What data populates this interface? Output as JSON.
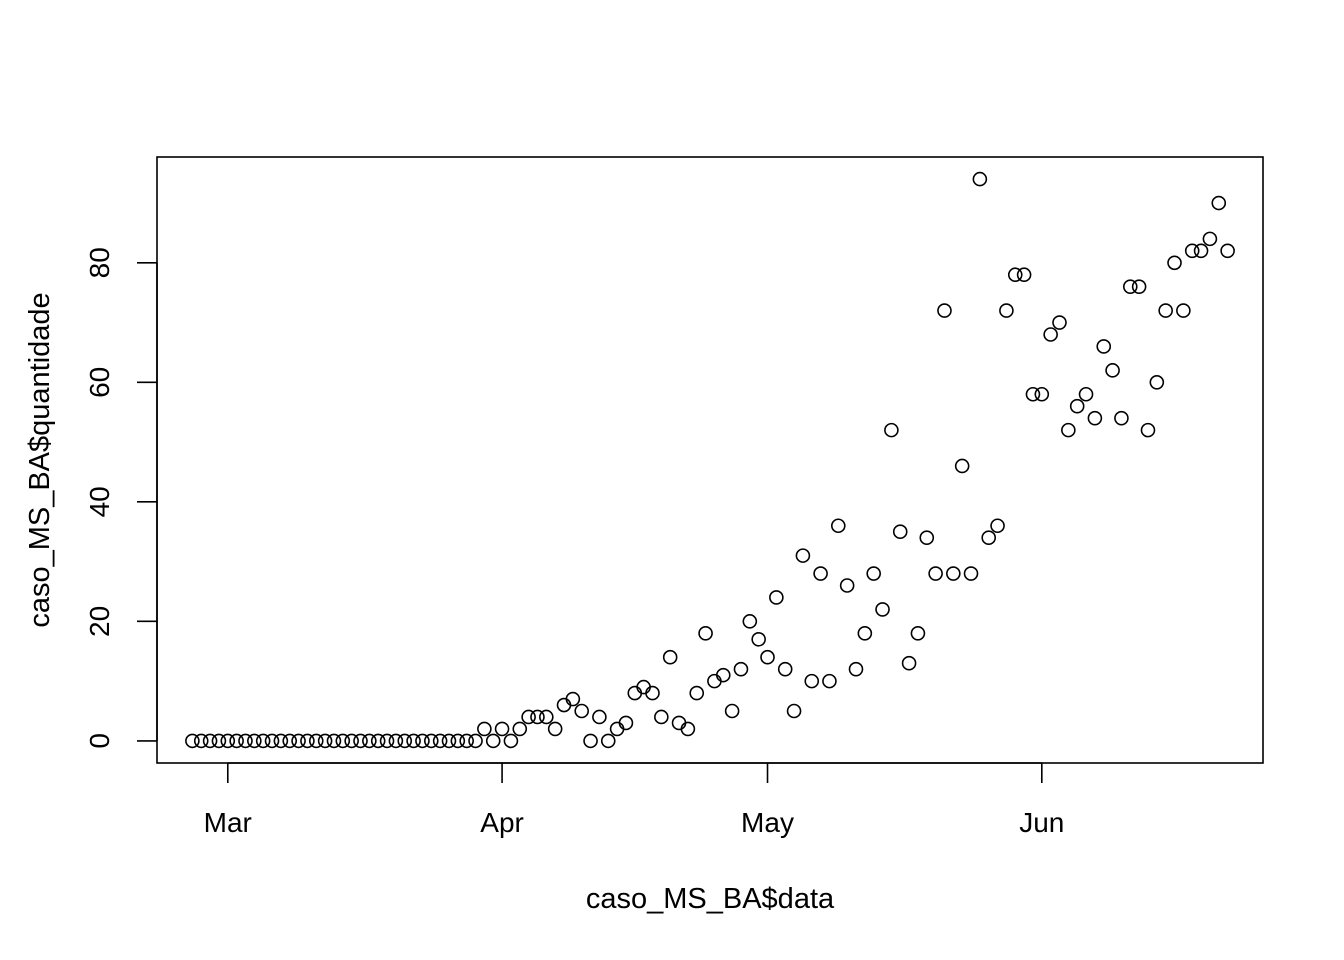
{
  "chart_data": {
    "type": "scatter",
    "title": "",
    "xlabel": "caso_MS_BA$data",
    "ylabel": "caso_MS_BA$quantidade",
    "x_type": "date",
    "x_start": "2020-02-26",
    "xlim": [
      "2020-02-22",
      "2020-06-26"
    ],
    "ylim": [
      -3.7,
      97.7
    ],
    "x_ticks": [
      {
        "label": "Mar",
        "date": "2020-03-01"
      },
      {
        "label": "Apr",
        "date": "2020-04-01"
      },
      {
        "label": "May",
        "date": "2020-05-01"
      },
      {
        "label": "Jun",
        "date": "2020-06-01"
      }
    ],
    "y_ticks": [
      0,
      20,
      40,
      60,
      80
    ],
    "grid": false,
    "legend": "none",
    "marker": "open-circle",
    "color": "#000000",
    "y": [
      0,
      0,
      0,
      0,
      0,
      0,
      0,
      0,
      0,
      0,
      0,
      0,
      0,
      0,
      0,
      0,
      0,
      0,
      0,
      0,
      0,
      0,
      0,
      0,
      0,
      0,
      0,
      0,
      0,
      0,
      0,
      0,
      0,
      2,
      0,
      2,
      0,
      2,
      4,
      4,
      4,
      2,
      6,
      7,
      5,
      0,
      4,
      0,
      2,
      3,
      8,
      9,
      8,
      4,
      14,
      3,
      2,
      8,
      18,
      10,
      11,
      5,
      12,
      20,
      17,
      14,
      24,
      12,
      5,
      31,
      10,
      28,
      10,
      36,
      26,
      12,
      18,
      28,
      22,
      52,
      35,
      13,
      18,
      34,
      28,
      72,
      28,
      46,
      28,
      94,
      34,
      36,
      72,
      78,
      78,
      58,
      58,
      68,
      70,
      52,
      56,
      58,
      54,
      66,
      62,
      54,
      76,
      76,
      52,
      60,
      72,
      80,
      72,
      82,
      82,
      84,
      90,
      82
    ]
  }
}
